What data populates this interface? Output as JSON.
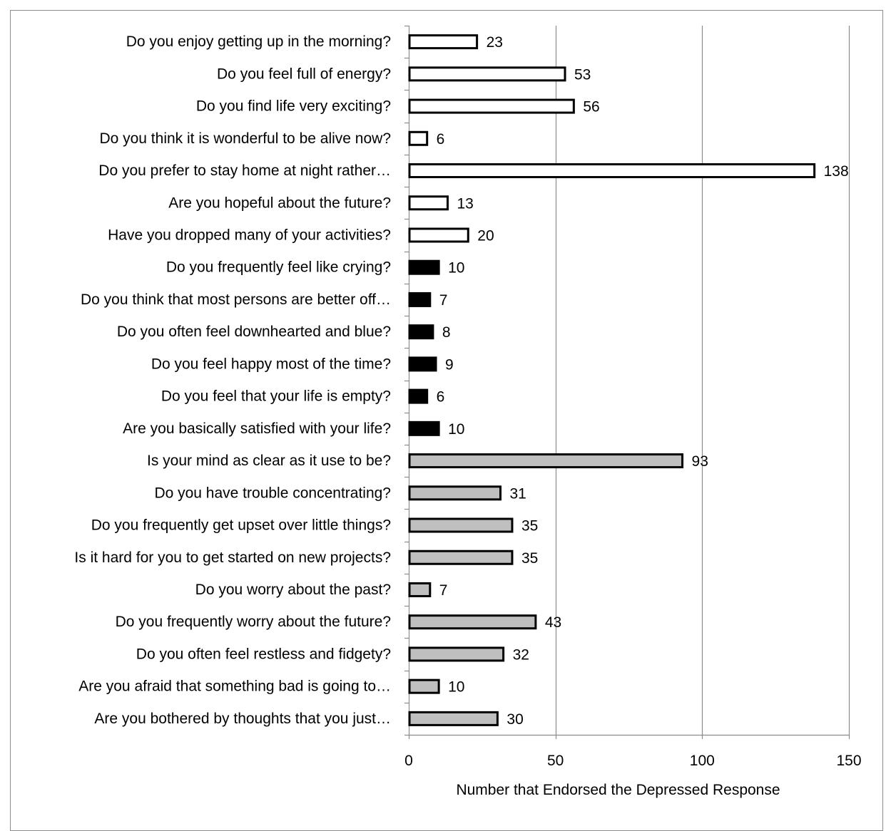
{
  "chart_data": {
    "type": "bar",
    "orientation": "horizontal",
    "title": "",
    "xlabel": "Number that Endorsed the Depressed Response",
    "ylabel": "",
    "xlim": [
      0,
      150
    ],
    "x_ticks": [
      0,
      50,
      100,
      150
    ],
    "grid": "vertical",
    "legend": "none",
    "categories": [
      "Do you enjoy getting up in the morning?",
      "Do you feel full of energy?",
      "Do you find life very exciting?",
      "Do you think it is wonderful to be alive now?",
      "Do you prefer to stay home at night rather…",
      "Are you hopeful about the future?",
      "Have you dropped many of your activities?",
      "Do you frequently feel like crying?",
      "Do you think that most persons are better off…",
      "Do you often feel downhearted and blue?",
      "Do you feel happy most of the time?",
      "Do you feel that your life is empty?",
      "Are you basically satisfied with your life?",
      "Is your mind as clear as it use to be?",
      "Do you have trouble concentrating?",
      "Do you frequently get upset over little things?",
      "Is it hard for you to get started on new projects?",
      "Do you worry about the past?",
      "Do you frequently worry about the future?",
      "Do you often feel restless and fidgety?",
      "Are you afraid that something bad is going to…",
      "Are you bothered by thoughts that you just…"
    ],
    "values": [
      23,
      53,
      56,
      6,
      138,
      13,
      20,
      10,
      7,
      8,
      9,
      6,
      10,
      93,
      31,
      35,
      35,
      7,
      43,
      32,
      10,
      30
    ],
    "bar_groups": [
      "white",
      "white",
      "white",
      "white",
      "white",
      "white",
      "white",
      "black",
      "black",
      "black",
      "black",
      "black",
      "black",
      "gray",
      "gray",
      "gray",
      "gray",
      "gray",
      "gray",
      "gray",
      "gray",
      "gray"
    ],
    "colors": {
      "white": "#ffffff",
      "black": "#000000",
      "gray": "#bfbfbf",
      "bar_outline": "#000000",
      "grid": "#8c8c8c",
      "axis": "#8c8c8c"
    }
  }
}
